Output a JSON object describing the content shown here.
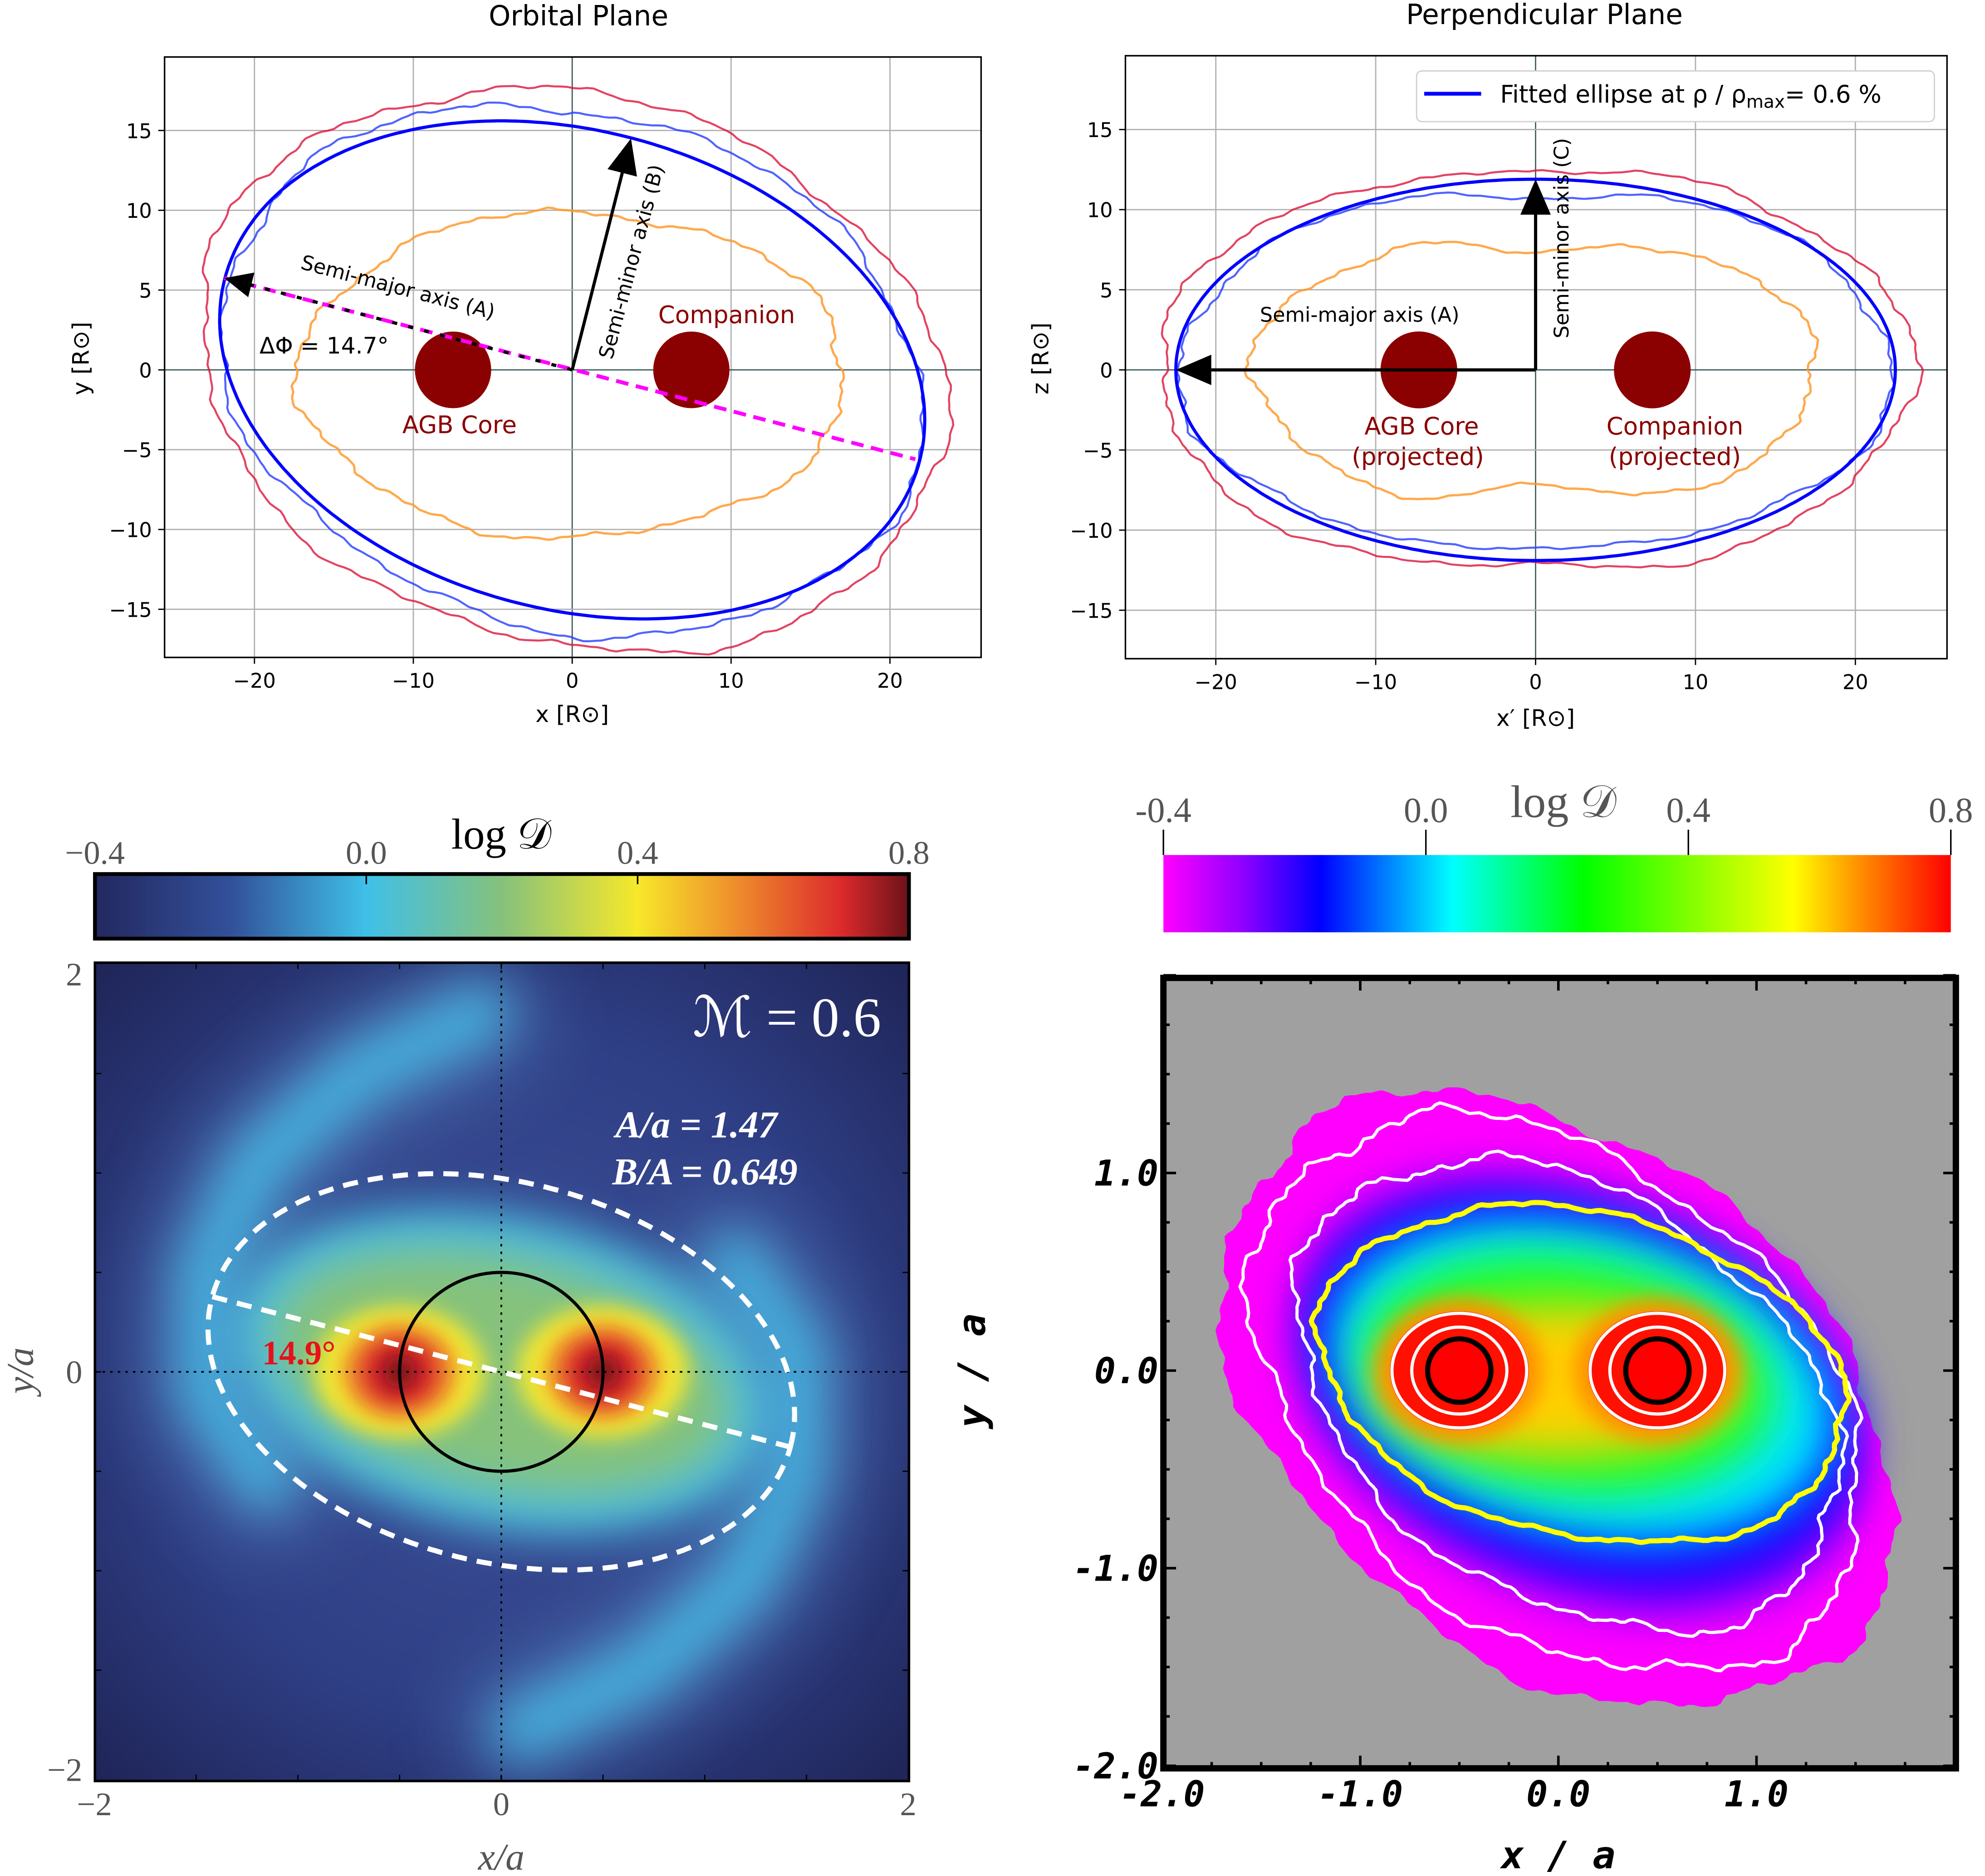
{
  "chart_data": [
    {
      "type": "line",
      "title": "Orbital Plane",
      "xlabel": "x [R⊙]",
      "ylabel": "y [R⊙]",
      "xlim": [
        -26,
        26
      ],
      "ylim": [
        -18,
        19
      ],
      "grid": true,
      "xticks": [
        -20,
        -10,
        0,
        10,
        20
      ],
      "xtick_labels": [
        "−20",
        "−10",
        "0",
        "10",
        "20"
      ],
      "yticks": [
        -15,
        -10,
        -5,
        0,
        5,
        10,
        15
      ],
      "ytick_labels": [
        "−15",
        "−10",
        "−5",
        "0",
        "5",
        "10",
        "15"
      ],
      "fitted_ellipse": {
        "center": [
          0,
          0
        ],
        "semi_major": 22.6,
        "semi_minor": 15.0,
        "angle_deg": -14.7,
        "color": "#0000ff"
      },
      "contours": [
        {
          "color": "#dc143c",
          "center": [
            0,
            0
          ],
          "semi_axes": [
            23.8,
            17.2
          ],
          "angle_deg": -14
        },
        {
          "color": "#3048ff",
          "center": [
            0,
            0
          ],
          "semi_axes": [
            22.4,
            16.2
          ],
          "angle_deg": -14
        },
        {
          "color": "#ff9a2e",
          "center": [
            0,
            -0.3
          ],
          "semi_axes": [
            17.2,
            10.2
          ],
          "angle_deg": 0
        }
      ],
      "bodies": [
        {
          "label": "AGB Core",
          "x": -7.5,
          "y": 0,
          "radius": 2.4,
          "color": "#8b0000"
        },
        {
          "label": "Companion",
          "x": 7.5,
          "y": 0,
          "radius": 2.4,
          "color": "#8b0000"
        }
      ],
      "annotations": {
        "semi_major": "Semi-major axis (A)",
        "semi_minor": "Semi-minor axis (B)",
        "angle": "ΔΦ = 14.7°"
      },
      "major_axis_line": {
        "from": [
          -21.9,
          5.75
        ],
        "to": [
          21.6,
          -5.6
        ],
        "color": "#ff00ff",
        "style": "dashed"
      }
    },
    {
      "type": "line",
      "title": "Perpendicular Plane",
      "xlabel": "x′ [R⊙]",
      "ylabel": "z [R⊙]",
      "xlim": [
        -26,
        26
      ],
      "ylim": [
        -18,
        19
      ],
      "grid": true,
      "xticks": [
        -20,
        -10,
        0,
        10,
        20
      ],
      "xtick_labels": [
        "−20",
        "−10",
        "0",
        "10",
        "20"
      ],
      "yticks": [
        -15,
        -10,
        -5,
        0,
        5,
        10,
        15
      ],
      "ytick_labels": [
        "−15",
        "−10",
        "−5",
        "0",
        "5",
        "10",
        "15"
      ],
      "legend": {
        "position": "top-right",
        "label_prefix": "Fitted ellipse at ρ / ρ",
        "label_sub": "max",
        "label_suffix": "= 0.6 %",
        "color": "#0000ff"
      },
      "fitted_ellipse": {
        "center": [
          0,
          0
        ],
        "semi_major": 22.5,
        "semi_minor": 11.9,
        "angle_deg": 0,
        "color": "#0000ff"
      },
      "contours": [
        {
          "color": "#dc143c",
          "center": [
            0,
            0
          ],
          "semi_axes": [
            23.6,
            13.0
          ],
          "angle_deg": 0
        },
        {
          "color": "#3048ff",
          "center": [
            0,
            0
          ],
          "semi_axes": [
            22.3,
            11.6
          ],
          "angle_deg": 0
        },
        {
          "color": "#ff9a2e",
          "center": [
            0,
            0
          ],
          "semi_axes": [
            17.6,
            8.8
          ],
          "angle_deg": 0
        }
      ],
      "bodies": [
        {
          "label": "AGB Core",
          "sublabel": "(projected)",
          "x": -7.3,
          "y": 0,
          "radius": 2.4,
          "color": "#8b0000"
        },
        {
          "label": "Companion",
          "sublabel": "(projected)",
          "x": 7.3,
          "y": 0,
          "radius": 2.4,
          "color": "#8b0000"
        }
      ],
      "annotations": {
        "semi_major": "Semi-major axis (A)",
        "semi_minor": "Semi-minor axis (C)"
      }
    },
    {
      "type": "heatmap",
      "xlabel": "x/a",
      "ylabel": "y/a",
      "xlim": [
        -2,
        2
      ],
      "ylim": [
        -2,
        2
      ],
      "xticks": [
        -2,
        0,
        2
      ],
      "xtick_labels": [
        "−2",
        "0",
        "2"
      ],
      "yticks": [
        -2,
        0,
        2
      ],
      "ytick_labels": [
        "−2",
        "0",
        "2"
      ],
      "colorbar": {
        "label": "log 𝒟",
        "range": [
          -0.4,
          0.8
        ],
        "ticks": [
          -0.4,
          0.0,
          0.4,
          0.8
        ],
        "tick_labels": [
          "−0.4",
          "0.0",
          "0.4",
          "0.8"
        ],
        "position": "top",
        "stops": [
          {
            "value": -0.4,
            "color": "#23285f"
          },
          {
            "value": -0.2,
            "color": "#32509a"
          },
          {
            "value": 0.0,
            "color": "#3fc0e8"
          },
          {
            "value": 0.2,
            "color": "#86c17c"
          },
          {
            "value": 0.4,
            "color": "#f7e82a"
          },
          {
            "value": 0.55,
            "color": "#ee8a2c"
          },
          {
            "value": 0.7,
            "color": "#dc2a2c"
          },
          {
            "value": 0.8,
            "color": "#6a1218"
          }
        ]
      },
      "bodies": [
        {
          "x": -0.5,
          "y": 0
        },
        {
          "x": 0.5,
          "y": 0
        }
      ],
      "fitted_ellipse": {
        "center": [
          0,
          0
        ],
        "semi_major": 1.47,
        "axis_ratio": 0.649,
        "angle_deg": -14.9,
        "color": "#ffffff",
        "style": "dashed"
      },
      "circle": {
        "center": [
          0,
          0
        ],
        "radius": 0.5,
        "color": "#000000"
      },
      "annotations": {
        "mach": "ℳ = 0.6",
        "a_ratio": "A/a = 1.47",
        "b_ratio": "B/A = 0.649",
        "angle": "14.9°",
        "angle_color": "#e8101a"
      }
    },
    {
      "type": "heatmap",
      "xlabel": "x / a",
      "ylabel": "y / a",
      "xlim": [
        -2,
        2
      ],
      "ylim": [
        -2,
        2
      ],
      "xticks": [
        -2,
        -1,
        0,
        1
      ],
      "xtick_labels": [
        "-2.0",
        "-1.0",
        "0.0",
        "1.0"
      ],
      "yticks": [
        -2,
        -1,
        0,
        1
      ],
      "ytick_labels": [
        "-2.0",
        "-1.0",
        "0.0",
        "1.0"
      ],
      "background": "#a0a0a0",
      "colorbar": {
        "label": "log 𝒟",
        "range": [
          -0.4,
          0.8
        ],
        "ticks": [
          -0.4,
          0.0,
          0.4,
          0.8
        ],
        "tick_labels": [
          "-0.4",
          "0.0",
          "0.4",
          "0.8"
        ],
        "position": "top",
        "stops": [
          {
            "value": -0.4,
            "color": "#ff00ff"
          },
          {
            "value": -0.28,
            "color": "#9000ff"
          },
          {
            "value": -0.16,
            "color": "#0000ff"
          },
          {
            "value": 0.04,
            "color": "#00ffff"
          },
          {
            "value": 0.24,
            "color": "#00ff00"
          },
          {
            "value": 0.56,
            "color": "#ffff00"
          },
          {
            "value": 0.66,
            "color": "#ff9000"
          },
          {
            "value": 0.8,
            "color": "#ff0000"
          }
        ]
      },
      "bodies": [
        {
          "x": -0.5,
          "y": 0
        },
        {
          "x": 0.5,
          "y": 0
        }
      ],
      "contour_colors": {
        "outer": "#ffffff",
        "mid": "#ffff00",
        "inner": "#000000"
      }
    }
  ]
}
